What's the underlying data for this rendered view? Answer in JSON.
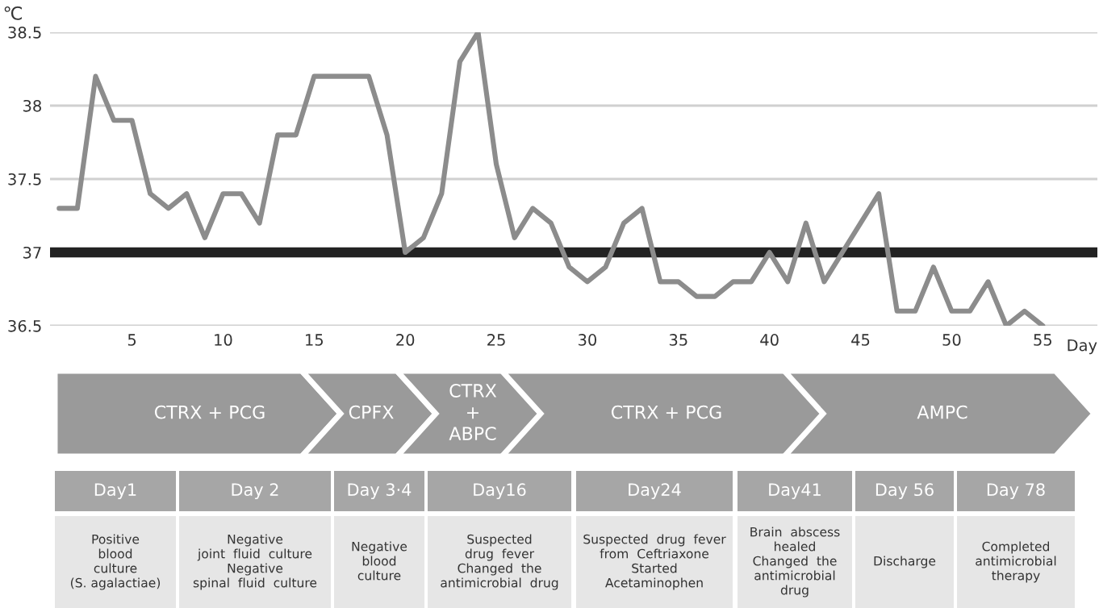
{
  "chart_data": {
    "type": "line",
    "ylabel": "℃",
    "xlabel": "Day",
    "x": [
      1,
      2,
      3,
      4,
      5,
      6,
      7,
      8,
      9,
      10,
      11,
      12,
      13,
      14,
      15,
      16,
      17,
      18,
      19,
      20,
      21,
      22,
      23,
      24,
      25,
      26,
      27,
      28,
      29,
      30,
      31,
      32,
      33,
      34,
      35,
      36,
      37,
      38,
      39,
      40,
      41,
      42,
      43,
      44,
      45,
      46,
      47,
      48,
      49,
      50,
      51,
      52,
      53,
      54,
      55
    ],
    "series": [
      {
        "color": "#8c8c8c",
        "values": [
          37.3,
          37.3,
          38.2,
          37.9,
          37.9,
          37.4,
          37.3,
          37.4,
          37.1,
          37.4,
          37.4,
          37.2,
          37.8,
          37.8,
          38.2,
          38.2,
          38.2,
          38.2,
          37.8,
          37.0,
          37.1,
          37.4,
          38.3,
          38.5,
          37.6,
          37.1,
          37.3,
          37.2,
          36.9,
          36.8,
          36.9,
          37.2,
          37.3,
          36.8,
          36.8,
          36.7,
          36.7,
          36.8,
          36.8,
          37.0,
          36.8,
          37.2,
          36.8,
          37.0,
          37.2,
          37.4,
          36.6,
          36.6,
          36.9,
          36.6,
          36.6,
          36.8,
          36.5,
          36.6,
          36.5
        ]
      }
    ],
    "xlim": [
      0.5,
      58
    ],
    "xticks": [
      5,
      10,
      15,
      20,
      25,
      30,
      35,
      40,
      45,
      50,
      55
    ],
    "ylim": [
      36.5,
      38.5
    ],
    "yticks": [
      36.5,
      37,
      37.5,
      38,
      38.5
    ],
    "grid": "y",
    "marker": "none",
    "line_style": "solid",
    "ref_lines": [
      {
        "axis": "y",
        "value": 37,
        "color": "#222222"
      }
    ],
    "annotations": [
      "CTRX + PCG",
      "CPFX",
      "CTRX\n+\nABPC",
      "CTRX + PCG",
      "AMPC",
      "Day1",
      "Day 2",
      "Day 3·4",
      "Day16",
      "Day24",
      "Day41",
      "Day 56",
      "Day 78",
      "Positive\nblood\nculture\n(S. agalactiae)",
      "Negative\njoint  fluid  culture\nNegative\nspinal  fluid  culture",
      "Negative\nblood\nculture",
      "Suspected\ndrug  fever\nChanged  the\nantimicrobial  drug",
      "Suspected  drug  fever\nfrom  Ceftriaxone\nStarted\nAcetaminophen",
      "Brain  abscess\nhealed\nChanged  the\nantimicrobial\ndrug",
      "Discharge",
      "Completed\nantimicrobial\ntherapy"
    ]
  }
}
